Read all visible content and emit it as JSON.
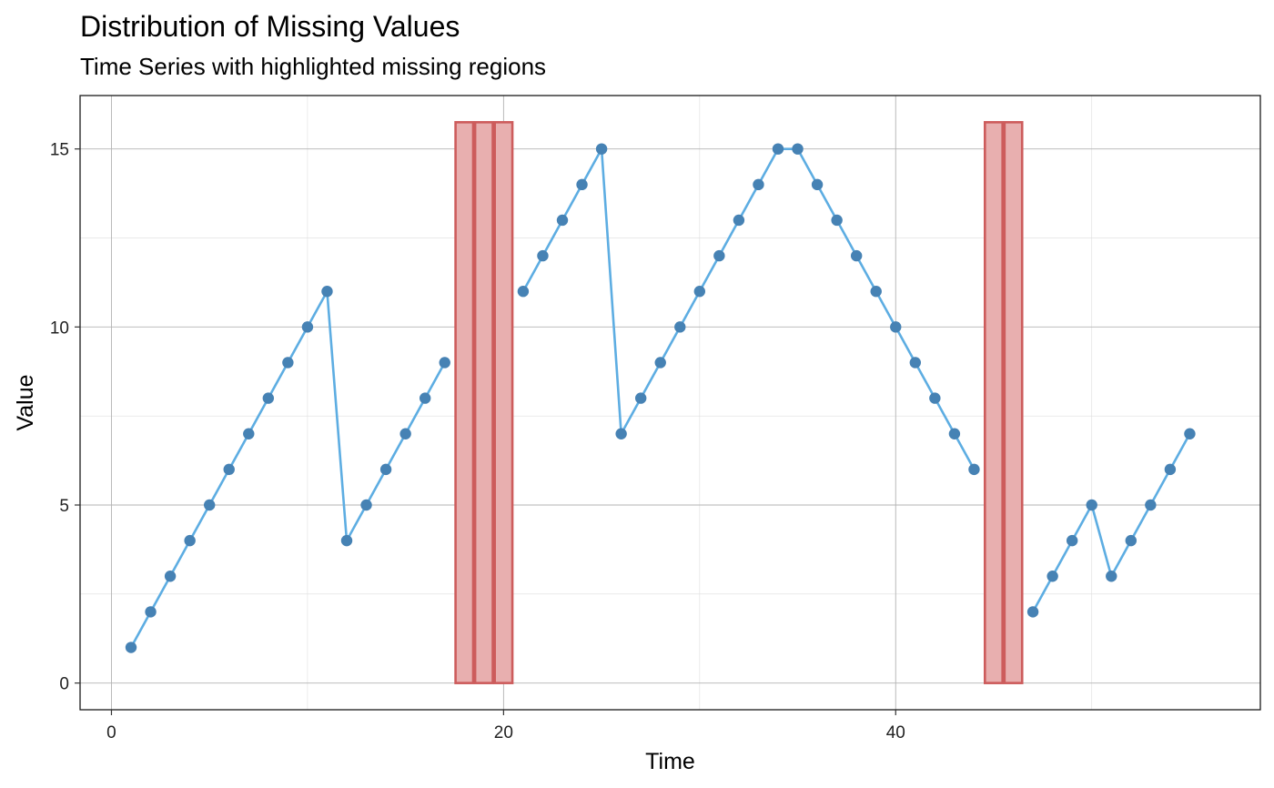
{
  "chart_data": {
    "type": "line",
    "title": "Distribution of Missing Values",
    "subtitle": "Time Series with highlighted missing regions",
    "xlabel": "Time",
    "ylabel": "Value",
    "xlim": [
      -1.6,
      58.6
    ],
    "ylim": [
      -0.75,
      16.5
    ],
    "x_ticks": [
      0,
      20,
      40
    ],
    "y_ticks": [
      0,
      5,
      10,
      15
    ],
    "x_minor": [
      10,
      30,
      50
    ],
    "y_minor": [
      2.5,
      7.5,
      12.5
    ],
    "grid": true,
    "line_color": "#5DADE2",
    "point_color": "#4682B4",
    "missing_fill": "#E8AFAF",
    "missing_stroke": "#CD5C5C",
    "missing_top": 15.75,
    "missing_x": [
      18,
      19,
      20,
      45,
      46
    ],
    "series": [
      {
        "x": [
          1,
          2,
          3,
          4,
          5,
          6,
          7,
          8,
          9,
          10,
          11,
          12,
          13,
          14,
          15,
          16,
          17,
          18,
          19,
          20,
          21,
          22,
          23,
          24,
          25,
          26,
          27,
          28,
          29,
          30,
          31,
          32,
          33,
          34,
          35,
          36,
          37,
          38,
          39,
          40,
          41,
          42,
          43,
          44,
          45,
          46,
          47,
          48,
          49,
          50,
          51,
          52,
          53,
          54,
          55,
          56
        ],
        "values": [
          1,
          2,
          3,
          4,
          5,
          6,
          7,
          8,
          9,
          10,
          11,
          4,
          5,
          6,
          7,
          8,
          9,
          null,
          null,
          null,
          11,
          12,
          13,
          14,
          15,
          7,
          8,
          9,
          10,
          11,
          12,
          13,
          14,
          15,
          15,
          14,
          13,
          12,
          11,
          10,
          9,
          8,
          7,
          6,
          null,
          null,
          2,
          3,
          4,
          5,
          3,
          4,
          5,
          6,
          7,
          null
        ]
      }
    ]
  }
}
